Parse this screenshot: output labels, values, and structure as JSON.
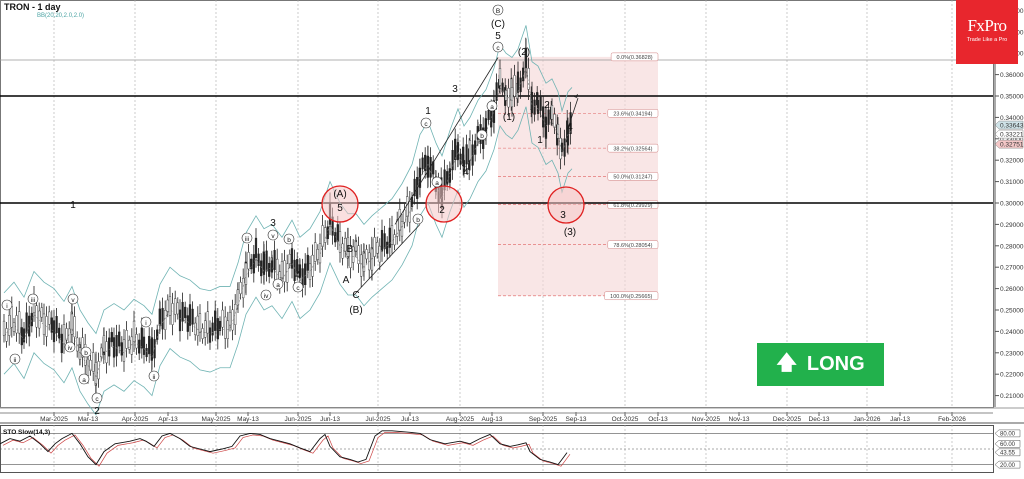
{
  "header": {
    "title": "TRON - 1 day",
    "indicator": "BB(20,20,2.0,2.0)"
  },
  "logo": {
    "brand": "FxPro",
    "tagline": "Trade Like a Pro",
    "color": "#e8262d"
  },
  "signal": {
    "label": "LONG",
    "icon": "arrow-up-icon",
    "color": "#22b14c"
  },
  "oscillator": {
    "title": "STO Slow(14,3)",
    "levels": [
      "80.00",
      "60.00",
      "43.55",
      "20.00"
    ]
  },
  "chart_data": {
    "type": "candlestick",
    "title": "TRON - 1 day",
    "indicators": [
      "BB(20,20,2.0,2.0)",
      "STO Slow(14,3)"
    ],
    "y_axis": {
      "ticks": [
        "0.39000",
        "0.38000",
        "0.37000",
        "0.36000",
        "0.35000",
        "0.34000",
        "0.33000",
        "0.32000",
        "0.31000",
        "0.30000",
        "0.29000",
        "0.28000",
        "0.27000",
        "0.26000",
        "0.25000",
        "0.24000",
        "0.23000",
        "0.22000",
        "0.21000"
      ],
      "range": [
        0.205,
        0.395
      ],
      "price_tags": [
        {
          "value": "0.33643",
          "color": "#cfe3e8"
        },
        {
          "value": "0.33221",
          "color": "#ffffff"
        },
        {
          "value": "0.32751",
          "color": "#f4c7c7"
        }
      ]
    },
    "x_axis": {
      "ticks": [
        "Mar-2025",
        "Mar-13",
        "Apr-2025",
        "Apr-13",
        "May-2025",
        "May-13",
        "Jun-2025",
        "Jun-13",
        "Jul-2025",
        "Jul-13",
        "Aug-2025",
        "Aug-13",
        "Sep-2025",
        "Sep-13",
        "Oct-2025",
        "Oct-13",
        "Nov-2025",
        "Nov-13",
        "Dec-2025",
        "Dec-13",
        "Jan-2026",
        "Jan-13",
        "Feb-2026"
      ]
    },
    "horizontal_levels": [
      0.35,
      0.3
    ],
    "fibonacci": [
      {
        "label": "0.0%(0.36828)",
        "value": 0.36828
      },
      {
        "label": "23.6%(0.34194)",
        "value": 0.34194
      },
      {
        "label": "38.2%(0.32564)",
        "value": 0.32564
      },
      {
        "label": "50.0%(0.31247)",
        "value": 0.31247
      },
      {
        "label": "61.8%(0.29929)",
        "value": 0.29929
      },
      {
        "label": "78.6%(0.28054)",
        "value": 0.28054
      },
      {
        "label": "100.0%(0.25665)",
        "value": 0.25665
      }
    ],
    "wave_labels": [
      "B",
      "(C)",
      "5",
      "c",
      "(2)",
      "(1)",
      "2",
      "1",
      "4",
      "3",
      "(3)",
      "(A)",
      "5",
      "B",
      "A",
      "C",
      "(B)",
      "3",
      "4",
      "1",
      "2",
      "a",
      "b",
      "c",
      "i",
      "ii",
      "iii",
      "iv",
      "v"
    ],
    "stochastic": {
      "overbought": 80,
      "oversold": 20,
      "current": 43.55
    },
    "grid": true
  }
}
